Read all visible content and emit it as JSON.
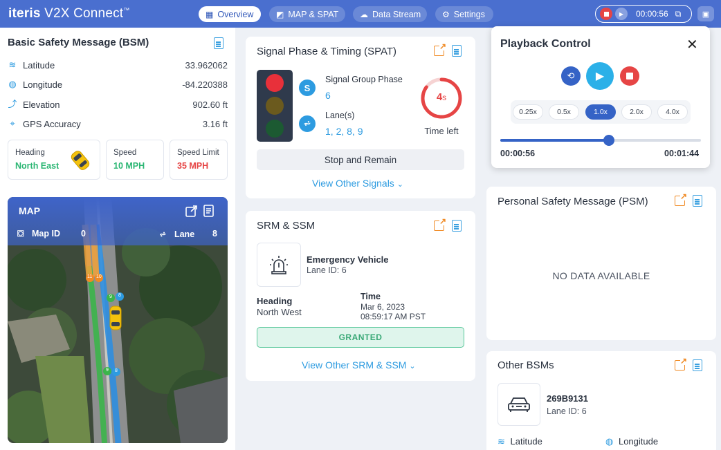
{
  "app": {
    "brand_bold": "iteris",
    "brand_rest": " V2X Connect",
    "brand_mark": "™"
  },
  "nav": {
    "tabs": [
      {
        "label": "Overview",
        "icon": "grid-icon",
        "active": true
      },
      {
        "label": "MAP & SPAT",
        "icon": "map-icon",
        "active": false
      },
      {
        "label": "Data Stream",
        "icon": "cloud-icon",
        "active": false
      },
      {
        "label": "Settings",
        "icon": "gear-icon",
        "active": false
      }
    ],
    "recorder_time": "00:00:56"
  },
  "bsm": {
    "title": "Basic Safety Message (BSM)",
    "rows": [
      {
        "label": "Latitude",
        "value": "33.962062",
        "icon": "database-icon"
      },
      {
        "label": "Longitude",
        "value": "-84.220388",
        "icon": "globe-icon"
      },
      {
        "label": "Elevation",
        "value": "902.60 ft",
        "icon": "elevation-arrow-icon"
      },
      {
        "label": "GPS Accuracy",
        "value": "3.16 ft",
        "icon": "crosshair-icon"
      }
    ],
    "heading_label": "Heading",
    "heading_value": "North East",
    "speed_label": "Speed",
    "speed_value": "10 MPH",
    "limit_label": "Speed Limit",
    "limit_value": "35 MPH"
  },
  "map": {
    "title": "MAP",
    "map_id_label": "Map ID",
    "map_id_value": "0",
    "lane_label": "Lane",
    "lane_value": "8",
    "markers": [
      "11",
      "10",
      "9",
      "8",
      "9",
      "8"
    ]
  },
  "spat": {
    "title": "Signal Phase & Timing (SPAT)",
    "group_label": "Signal Group Phase",
    "group_value": "6",
    "group_badge": "S",
    "lanes_label": "Lane(s)",
    "lanes_value": "1, 2, 8, 9",
    "timer_value": "4",
    "timer_unit": "s",
    "timer_label": "Time left",
    "timer_fraction": 0.85,
    "state": "Stop and Remain",
    "link": "View Other Signals"
  },
  "srm": {
    "title": "SRM & SSM",
    "vehicle": "Emergency Vehicle",
    "lane": "Lane ID: 6",
    "heading_label": "Heading",
    "heading_value": "North West",
    "time_label": "Time",
    "date": "Mar 6, 2023",
    "clock": "08:59:17 AM PST",
    "status": "GRANTED",
    "link": "View Other SRM & SSM"
  },
  "playback": {
    "title": "Playback Control",
    "speeds": [
      "0.25x",
      "0.5x",
      "1.0x",
      "2.0x",
      "4.0x"
    ],
    "active_speed": "1.0x",
    "current": "00:00:56",
    "total": "00:01:44",
    "progress": 0.54
  },
  "psm": {
    "title": "Personal Safety Message (PSM)",
    "empty": "NO DATA AVAILABLE"
  },
  "other_bsm": {
    "title": "Other BSMs",
    "id": "269B9131",
    "lane": "Lane ID: 6",
    "lat_label": "Latitude",
    "lon_label": "Longitude"
  },
  "colors": {
    "accent": "#4a6fcf",
    "link": "#2d9be0",
    "green": "#2bb673",
    "red": "#e64545",
    "orange": "#f08a24"
  }
}
